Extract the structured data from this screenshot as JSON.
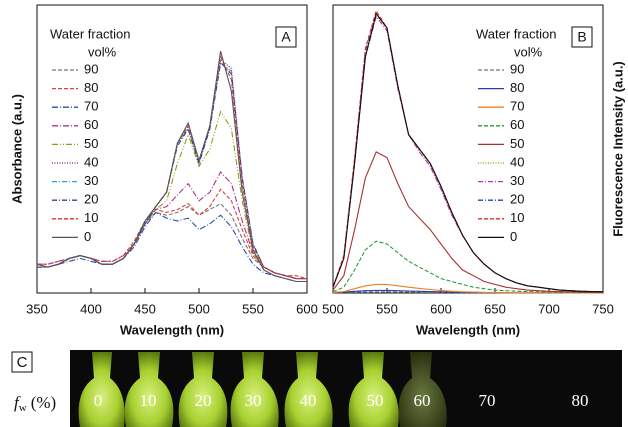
{
  "chart_data": [
    {
      "type": "line",
      "panel_label": "A",
      "xlabel": "Wavelength (nm)",
      "ylabel": "Absorbance (a.u.)",
      "legend_title": "Water fraction",
      "legend_subtitle": "vol%",
      "x": [
        350,
        360,
        370,
        380,
        390,
        400,
        410,
        420,
        430,
        440,
        450,
        460,
        470,
        480,
        490,
        500,
        510,
        520,
        530,
        540,
        550,
        560,
        570,
        580,
        590,
        600
      ],
      "xlim": [
        350,
        600
      ],
      "xticks": [
        350,
        400,
        450,
        500,
        550,
        600
      ],
      "ylim": [
        0,
        1
      ],
      "series": [
        {
          "name": "90",
          "color": "#777777",
          "dash": "4 2",
          "values": [
            0.09,
            0.09,
            0.1,
            0.12,
            0.13,
            0.12,
            0.1,
            0.1,
            0.12,
            0.17,
            0.24,
            0.28,
            0.27,
            0.28,
            0.3,
            0.27,
            0.29,
            0.31,
            0.27,
            0.19,
            0.12,
            0.09,
            0.07,
            0.06,
            0.05,
            0.05
          ]
        },
        {
          "name": "80",
          "color": "#e0403a",
          "dash": "4 2",
          "values": [
            0.1,
            0.1,
            0.11,
            0.12,
            0.13,
            0.12,
            0.11,
            0.11,
            0.13,
            0.18,
            0.25,
            0.29,
            0.28,
            0.29,
            0.31,
            0.27,
            0.3,
            0.36,
            0.32,
            0.22,
            0.13,
            0.09,
            0.07,
            0.06,
            0.06,
            0.05
          ]
        },
        {
          "name": "70",
          "color": "#2b4fa8",
          "dash": "6 2 1 2",
          "values": [
            0.09,
            0.09,
            0.1,
            0.11,
            0.12,
            0.11,
            0.1,
            0.1,
            0.12,
            0.16,
            0.23,
            0.28,
            0.26,
            0.25,
            0.26,
            0.22,
            0.24,
            0.27,
            0.23,
            0.16,
            0.1,
            0.07,
            0.06,
            0.05,
            0.04,
            0.04
          ]
        },
        {
          "name": "60",
          "color": "#b0308a",
          "dash": "6 2 1 2",
          "values": [
            0.1,
            0.1,
            0.11,
            0.12,
            0.13,
            0.12,
            0.11,
            0.11,
            0.13,
            0.17,
            0.24,
            0.29,
            0.3,
            0.34,
            0.38,
            0.32,
            0.35,
            0.42,
            0.38,
            0.25,
            0.14,
            0.09,
            0.07,
            0.06,
            0.05,
            0.05
          ]
        },
        {
          "name": "50",
          "color": "#9a9a10",
          "dash": "6 2 1 2 1 2",
          "values": [
            0.09,
            0.09,
            0.1,
            0.12,
            0.13,
            0.12,
            0.1,
            0.1,
            0.12,
            0.17,
            0.24,
            0.29,
            0.32,
            0.45,
            0.55,
            0.44,
            0.5,
            0.63,
            0.57,
            0.32,
            0.14,
            0.08,
            0.06,
            0.05,
            0.04,
            0.04
          ]
        },
        {
          "name": "40",
          "color": "#8b1a1a",
          "dash": "1 1.5",
          "values": [
            0.1,
            0.09,
            0.1,
            0.12,
            0.13,
            0.12,
            0.1,
            0.1,
            0.12,
            0.17,
            0.24,
            0.3,
            0.35,
            0.52,
            0.57,
            0.45,
            0.57,
            0.81,
            0.78,
            0.4,
            0.17,
            0.09,
            0.07,
            0.06,
            0.05,
            0.05
          ]
        },
        {
          "name": "30",
          "color": "#2aa0e0",
          "dash": "5 2 1 2",
          "values": [
            0.1,
            0.09,
            0.1,
            0.12,
            0.13,
            0.12,
            0.1,
            0.1,
            0.12,
            0.17,
            0.24,
            0.3,
            0.35,
            0.52,
            0.57,
            0.45,
            0.57,
            0.8,
            0.77,
            0.4,
            0.17,
            0.09,
            0.07,
            0.06,
            0.05,
            0.05
          ]
        },
        {
          "name": "20",
          "color": "#3040a0",
          "dash": "5 2 1 2",
          "values": [
            0.09,
            0.09,
            0.1,
            0.12,
            0.13,
            0.12,
            0.1,
            0.1,
            0.12,
            0.17,
            0.24,
            0.3,
            0.35,
            0.51,
            0.57,
            0.45,
            0.57,
            0.8,
            0.76,
            0.4,
            0.17,
            0.09,
            0.07,
            0.06,
            0.05,
            0.05
          ]
        },
        {
          "name": "10",
          "color": "#e03030",
          "dash": "4 2",
          "values": [
            0.1,
            0.09,
            0.1,
            0.12,
            0.13,
            0.12,
            0.1,
            0.1,
            0.12,
            0.17,
            0.25,
            0.3,
            0.35,
            0.52,
            0.58,
            0.46,
            0.58,
            0.82,
            0.74,
            0.38,
            0.16,
            0.09,
            0.07,
            0.06,
            0.05,
            0.05
          ]
        },
        {
          "name": "0",
          "color": "#555555",
          "dash": "",
          "values": [
            0.1,
            0.09,
            0.1,
            0.12,
            0.13,
            0.12,
            0.1,
            0.1,
            0.12,
            0.17,
            0.25,
            0.3,
            0.35,
            0.52,
            0.59,
            0.46,
            0.58,
            0.84,
            0.7,
            0.35,
            0.15,
            0.08,
            0.06,
            0.05,
            0.04,
            0.04
          ]
        }
      ]
    },
    {
      "type": "line",
      "panel_label": "B",
      "xlabel": "Wavelength (nm)",
      "ylabel": "Fluorescence Intensity (a.u.)",
      "legend_title": "Water fraction",
      "legend_subtitle": "vol%",
      "x": [
        500,
        510,
        520,
        530,
        540,
        550,
        560,
        570,
        580,
        590,
        600,
        610,
        620,
        630,
        640,
        650,
        660,
        670,
        680,
        690,
        700,
        710,
        720,
        730,
        740,
        750
      ],
      "xlim": [
        500,
        750
      ],
      "xticks": [
        500,
        550,
        600,
        650,
        700,
        750
      ],
      "ylim": [
        0,
        1
      ],
      "series": [
        {
          "name": "90",
          "color": "#777777",
          "dash": "4 2",
          "values": [
            0.001,
            0.002,
            0.003,
            0.004,
            0.004,
            0.004,
            0.004,
            0.003,
            0.003,
            0.002,
            0.002,
            0.002,
            0.001,
            0.001,
            0.001,
            0.001,
            0,
            0,
            0,
            0,
            0,
            0,
            0,
            0,
            0,
            0
          ]
        },
        {
          "name": "80",
          "color": "#2b3fb0",
          "dash": "",
          "values": [
            0.002,
            0.003,
            0.006,
            0.008,
            0.009,
            0.009,
            0.008,
            0.007,
            0.006,
            0.005,
            0.004,
            0.003,
            0.002,
            0.002,
            0.001,
            0.001,
            0.001,
            0,
            0,
            0,
            0,
            0,
            0,
            0,
            0,
            0
          ]
        },
        {
          "name": "70",
          "color": "#f08020",
          "dash": "",
          "values": [
            0.002,
            0.005,
            0.015,
            0.025,
            0.03,
            0.03,
            0.025,
            0.02,
            0.016,
            0.012,
            0.009,
            0.006,
            0.004,
            0.003,
            0.002,
            0.002,
            0.001,
            0.001,
            0.001,
            0.001,
            0.001,
            0.001,
            0,
            0,
            0,
            0
          ]
        },
        {
          "name": "60",
          "color": "#2a9a3a",
          "dash": "4 2",
          "values": [
            0.005,
            0.02,
            0.08,
            0.15,
            0.18,
            0.17,
            0.14,
            0.11,
            0.09,
            0.07,
            0.05,
            0.04,
            0.03,
            0.02,
            0.015,
            0.01,
            0.008,
            0.006,
            0.005,
            0.004,
            0.003,
            0.002,
            0.002,
            0.001,
            0.001,
            0.001
          ]
        },
        {
          "name": "50",
          "color": "#a83030",
          "dash": "",
          "values": [
            0.01,
            0.06,
            0.22,
            0.4,
            0.49,
            0.47,
            0.38,
            0.3,
            0.26,
            0.22,
            0.17,
            0.12,
            0.08,
            0.06,
            0.04,
            0.03,
            0.02,
            0.015,
            0.01,
            0.008,
            0.006,
            0.005,
            0.004,
            0.003,
            0.002,
            0.002
          ]
        },
        {
          "name": "40",
          "color": "#9a9a10",
          "dash": "1 1.5",
          "values": [
            0.02,
            0.12,
            0.46,
            0.83,
            0.96,
            0.92,
            0.72,
            0.55,
            0.49,
            0.44,
            0.36,
            0.27,
            0.2,
            0.14,
            0.1,
            0.07,
            0.05,
            0.035,
            0.025,
            0.02,
            0.015,
            0.01,
            0.008,
            0.006,
            0.005,
            0.004
          ]
        },
        {
          "name": "30",
          "color": "#c030c0",
          "dash": "5 2 1 2",
          "values": [
            0.02,
            0.12,
            0.45,
            0.82,
            0.96,
            0.91,
            0.71,
            0.55,
            0.49,
            0.44,
            0.36,
            0.27,
            0.2,
            0.14,
            0.1,
            0.07,
            0.05,
            0.035,
            0.025,
            0.02,
            0.015,
            0.01,
            0.008,
            0.006,
            0.005,
            0.004
          ]
        },
        {
          "name": "20",
          "color": "#3040a0",
          "dash": "5 2 1 2",
          "values": [
            0.02,
            0.12,
            0.46,
            0.84,
            0.97,
            0.92,
            0.72,
            0.55,
            0.5,
            0.45,
            0.37,
            0.28,
            0.2,
            0.14,
            0.1,
            0.07,
            0.05,
            0.035,
            0.025,
            0.02,
            0.015,
            0.01,
            0.008,
            0.006,
            0.005,
            0.004
          ]
        },
        {
          "name": "10",
          "color": "#e03030",
          "dash": "4 2",
          "values": [
            0.02,
            0.13,
            0.47,
            0.85,
            0.98,
            0.92,
            0.72,
            0.55,
            0.5,
            0.45,
            0.37,
            0.28,
            0.2,
            0.14,
            0.1,
            0.07,
            0.05,
            0.035,
            0.025,
            0.02,
            0.015,
            0.01,
            0.008,
            0.006,
            0.005,
            0.004
          ]
        },
        {
          "name": "0",
          "color": "#111111",
          "dash": "",
          "values": [
            0.02,
            0.12,
            0.45,
            0.82,
            0.97,
            0.92,
            0.72,
            0.55,
            0.5,
            0.45,
            0.37,
            0.28,
            0.2,
            0.14,
            0.1,
            0.07,
            0.05,
            0.035,
            0.025,
            0.02,
            0.015,
            0.01,
            0.008,
            0.006,
            0.005,
            0.004
          ]
        }
      ]
    }
  ],
  "panel_c": {
    "label": "C",
    "symbol": "f",
    "subscript": "w",
    "unit": "(%)",
    "samples": [
      "0",
      "10",
      "20",
      "30",
      "40",
      "50",
      "60",
      "70",
      "80"
    ]
  }
}
